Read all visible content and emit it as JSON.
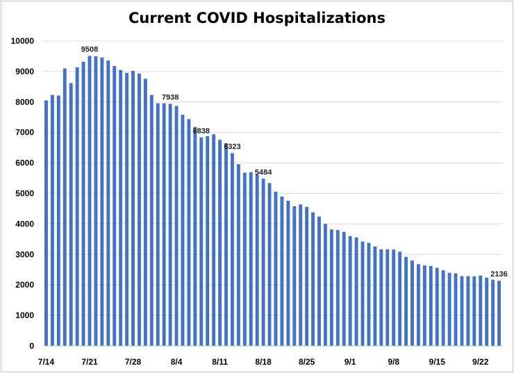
{
  "chart_data": {
    "type": "bar",
    "title": "Current COVID Hospitalizations",
    "xlabel": "",
    "ylabel": "",
    "ylim": [
      0,
      10000
    ],
    "yticks": [
      0,
      1000,
      2000,
      3000,
      4000,
      5000,
      6000,
      7000,
      8000,
      9000,
      10000
    ],
    "grid": true,
    "bar_color": "#4472c4",
    "x_tick_labels": [
      {
        "index": 0,
        "label": "7/14"
      },
      {
        "index": 7,
        "label": "7/21"
      },
      {
        "index": 14,
        "label": "7/28"
      },
      {
        "index": 21,
        "label": "8/4"
      },
      {
        "index": 28,
        "label": "8/11"
      },
      {
        "index": 35,
        "label": "8/18"
      },
      {
        "index": 42,
        "label": "8/25"
      },
      {
        "index": 49,
        "label": "9/1"
      },
      {
        "index": 56,
        "label": "9/8"
      },
      {
        "index": 63,
        "label": "9/15"
      },
      {
        "index": 70,
        "label": "9/22"
      }
    ],
    "values": [
      8050,
      8230,
      8210,
      9100,
      8620,
      9140,
      9320,
      9508,
      9500,
      9460,
      9360,
      9180,
      9050,
      8950,
      9020,
      8930,
      8760,
      8230,
      7960,
      7960,
      7938,
      7870,
      7580,
      7440,
      7180,
      6838,
      6880,
      6940,
      6760,
      6650,
      6323,
      5960,
      5680,
      5700,
      5620,
      5484,
      5340,
      5060,
      4900,
      4760,
      4580,
      4640,
      4560,
      4380,
      4240,
      4000,
      3820,
      3800,
      3740,
      3600,
      3560,
      3420,
      3380,
      3260,
      3170,
      3170,
      3160,
      3090,
      2920,
      2800,
      2680,
      2640,
      2620,
      2560,
      2480,
      2400,
      2380,
      2290,
      2290,
      2280,
      2310,
      2240,
      2170,
      2136
    ],
    "data_labels": [
      {
        "index": 7,
        "text": "9508"
      },
      {
        "index": 20,
        "text": "7938"
      },
      {
        "index": 25,
        "text": "6838"
      },
      {
        "index": 30,
        "text": "6323"
      },
      {
        "index": 35,
        "text": "5484"
      },
      {
        "index": 73,
        "text": "2136"
      }
    ]
  }
}
